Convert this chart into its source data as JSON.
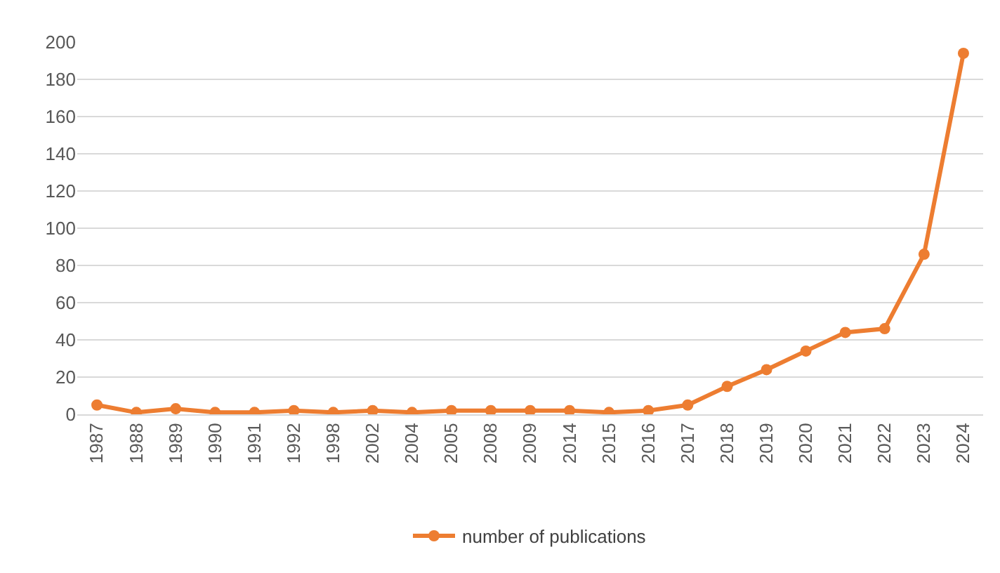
{
  "chart_data": {
    "type": "line",
    "categories": [
      "1987",
      "1988",
      "1989",
      "1990",
      "1991",
      "1992",
      "1998",
      "2002",
      "2004",
      "2005",
      "2008",
      "2009",
      "2014",
      "2015",
      "2016",
      "2017",
      "2018",
      "2019",
      "2020",
      "2021",
      "2022",
      "2023",
      "2024"
    ],
    "series": [
      {
        "name": "number of publications",
        "color": "#ed7d31",
        "values": [
          5,
          1,
          3,
          1,
          1,
          2,
          1,
          2,
          1,
          2,
          2,
          2,
          2,
          1,
          2,
          5,
          15,
          24,
          34,
          44,
          46,
          86,
          194
        ]
      }
    ],
    "ylim": [
      0,
      200
    ],
    "yticks": [
      0,
      20,
      40,
      60,
      80,
      100,
      120,
      140,
      160,
      180,
      200
    ],
    "grid": "y",
    "legend": "bottom",
    "marker": "circle",
    "line_style": "solid"
  }
}
